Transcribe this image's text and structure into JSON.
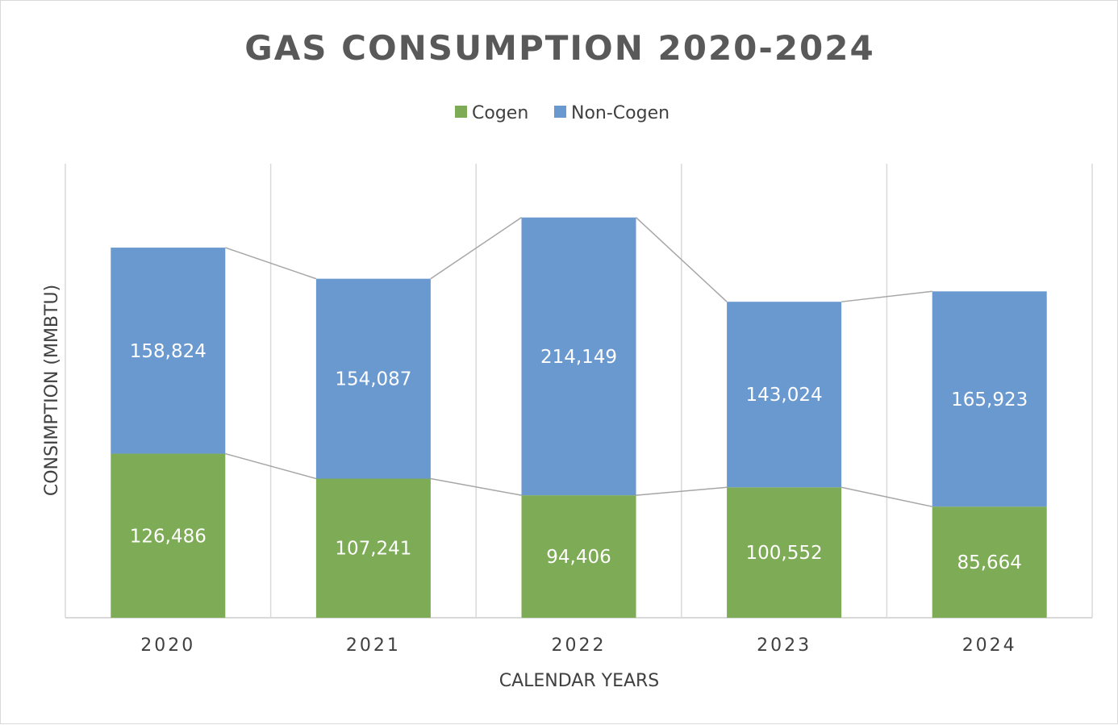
{
  "chart_data": {
    "type": "bar",
    "stacked": true,
    "title": "GAS CONSUMPTION 2020-2024",
    "xlabel": "CALENDAR YEARS",
    "ylabel": "CONSIMPTION (MMBTU)",
    "categories": [
      "2020",
      "2021",
      "2022",
      "2023",
      "2024"
    ],
    "series": [
      {
        "name": "Cogen",
        "color": "#7eab55",
        "values": [
          126486,
          107241,
          94406,
          100552,
          85664
        ]
      },
      {
        "name": "Non-Cogen",
        "color": "#6a99d0",
        "values": [
          158824,
          154087,
          214149,
          143024,
          165923
        ]
      }
    ],
    "value_labels": {
      "Cogen": [
        "126,486",
        "107,241",
        "94,406",
        "100,552",
        "85,664"
      ],
      "Non-Cogen": [
        "158,824",
        "154,087",
        "214,149",
        "143,024",
        "165,923"
      ]
    },
    "ylim": [
      0,
      350000
    ],
    "legend_position": "top",
    "grid": "vertical",
    "series_lines": true,
    "colors": {
      "gridline": "#d9d9d9",
      "series_line": "#a6a6a6",
      "title": "#595959",
      "text": "#404040",
      "data_label": "#ffffff"
    }
  }
}
